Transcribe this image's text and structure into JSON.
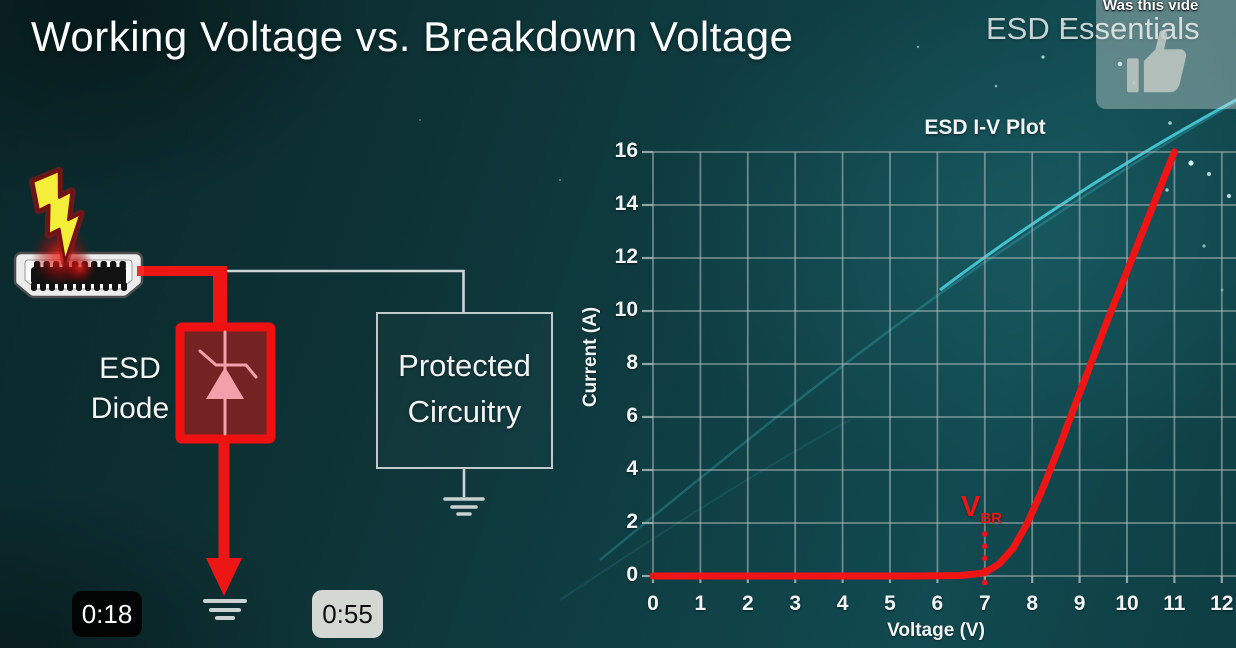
{
  "header": {
    "title": "Working Voltage vs. Breakdown Voltage",
    "watermark": "ESD Essentials"
  },
  "video_overlay": {
    "prompt_text": "Was this vide",
    "like_icon": "thumbs-up-icon",
    "timestamps": [
      {
        "label": "0:18",
        "style": "dark"
      },
      {
        "label": "0:55",
        "style": "light"
      }
    ]
  },
  "diagram": {
    "esd_diode_label": "ESD\nDiode",
    "protected_label": "Protected\nCircuitry",
    "icons": [
      "lightning-bolt-icon",
      "hdmi-connector-icon",
      "zener-diode-symbol",
      "ground-symbol"
    ],
    "wire_colors": {
      "esd_path": "#ee1515",
      "signal_path": "#ccd6d6"
    },
    "diode_box": {
      "border": "#ef1111",
      "fill": "#742222",
      "symbol": "#f4a0aa"
    }
  },
  "chart_data": {
    "type": "line",
    "title": "ESD I-V Plot",
    "xlabel": "Voltage (V)",
    "ylabel": "Current (A)",
    "xlim": [
      0,
      12.3
    ],
    "ylim": [
      0,
      16
    ],
    "xticks": [
      0,
      1,
      2,
      3,
      4,
      5,
      6,
      7,
      8,
      9,
      10,
      11,
      12
    ],
    "yticks": [
      0,
      2,
      4,
      6,
      8,
      10,
      12,
      14,
      16
    ],
    "grid": true,
    "legend": "none",
    "grid_color": "#a9b6b6",
    "series": [
      {
        "name": "ESD diode I-V curve",
        "color": "#f11414",
        "points": [
          [
            0,
            0
          ],
          [
            5.5,
            0
          ],
          [
            6.5,
            0.02
          ],
          [
            7,
            0.12
          ],
          [
            7.3,
            0.45
          ],
          [
            7.6,
            1.05
          ],
          [
            7.9,
            2.0
          ],
          [
            8.2,
            3.2
          ],
          [
            8.6,
            5.0
          ],
          [
            9,
            6.9
          ],
          [
            9.6,
            9.7
          ],
          [
            10.2,
            12.4
          ],
          [
            11,
            16
          ]
        ]
      }
    ],
    "annotation": {
      "label": "V",
      "subscript": "BR",
      "x": 7,
      "marker": "dotted-vertical-line",
      "color": "#ef1414"
    }
  },
  "colors": {
    "background_teal": "#0e383c",
    "accent_red": "#ee1515",
    "swoosh_cyan": "#46d6e4",
    "text_white": "#f2f5f5"
  }
}
